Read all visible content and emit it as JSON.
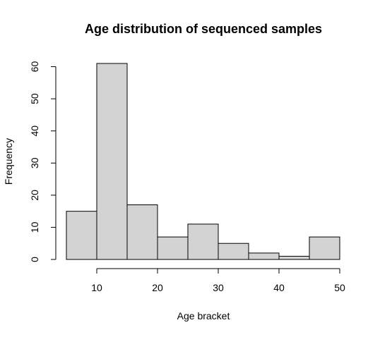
{
  "chart_data": {
    "type": "bar",
    "subtype": "histogram",
    "title": "Age distribution of sequenced samples",
    "xlabel": "Age bracket",
    "ylabel": "Frequency",
    "bins": [
      {
        "start": 5,
        "end": 10,
        "count": 15
      },
      {
        "start": 10,
        "end": 15,
        "count": 61
      },
      {
        "start": 15,
        "end": 20,
        "count": 17
      },
      {
        "start": 20,
        "end": 25,
        "count": 7
      },
      {
        "start": 25,
        "end": 30,
        "count": 11
      },
      {
        "start": 30,
        "end": 35,
        "count": 5
      },
      {
        "start": 35,
        "end": 40,
        "count": 2
      },
      {
        "start": 40,
        "end": 45,
        "count": 1
      },
      {
        "start": 45,
        "end": 50,
        "count": 7
      }
    ],
    "x_ticks": [
      10,
      20,
      30,
      40,
      50
    ],
    "y_ticks": [
      0,
      10,
      20,
      30,
      40,
      50,
      60
    ],
    "xlim": [
      5,
      50
    ],
    "ylim": [
      0,
      61
    ],
    "grid": false,
    "legend": "none",
    "colors": {
      "bar_fill": "#d3d3d3",
      "bar_stroke": "#000000"
    }
  }
}
